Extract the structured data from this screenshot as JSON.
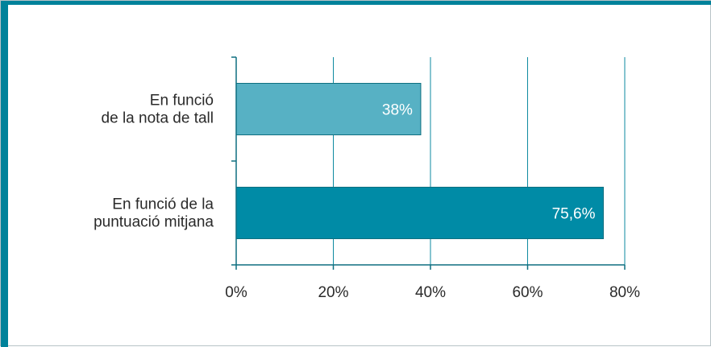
{
  "theme": {
    "accent": "#00829a",
    "grid": "#0e8aa0",
    "axis": "#0e6f80"
  },
  "chart_data": {
    "type": "bar",
    "orientation": "horizontal",
    "categories": [
      [
        "En funció",
        "de la nota de tall"
      ],
      [
        "En funció de la",
        "puntuació mitjana"
      ]
    ],
    "values": [
      38,
      75.6
    ],
    "value_labels": [
      "38%",
      "75,6%"
    ],
    "bar_colors": [
      "#57b1c4",
      "#008ba6"
    ],
    "xlim": [
      0,
      80
    ],
    "x_ticks": [
      0,
      20,
      40,
      60,
      80
    ],
    "x_tick_labels": [
      "0%",
      "20%",
      "40%",
      "60%",
      "80%"
    ],
    "grid": "vertical",
    "legend": "none",
    "title": "",
    "xlabel": "",
    "ylabel": ""
  }
}
